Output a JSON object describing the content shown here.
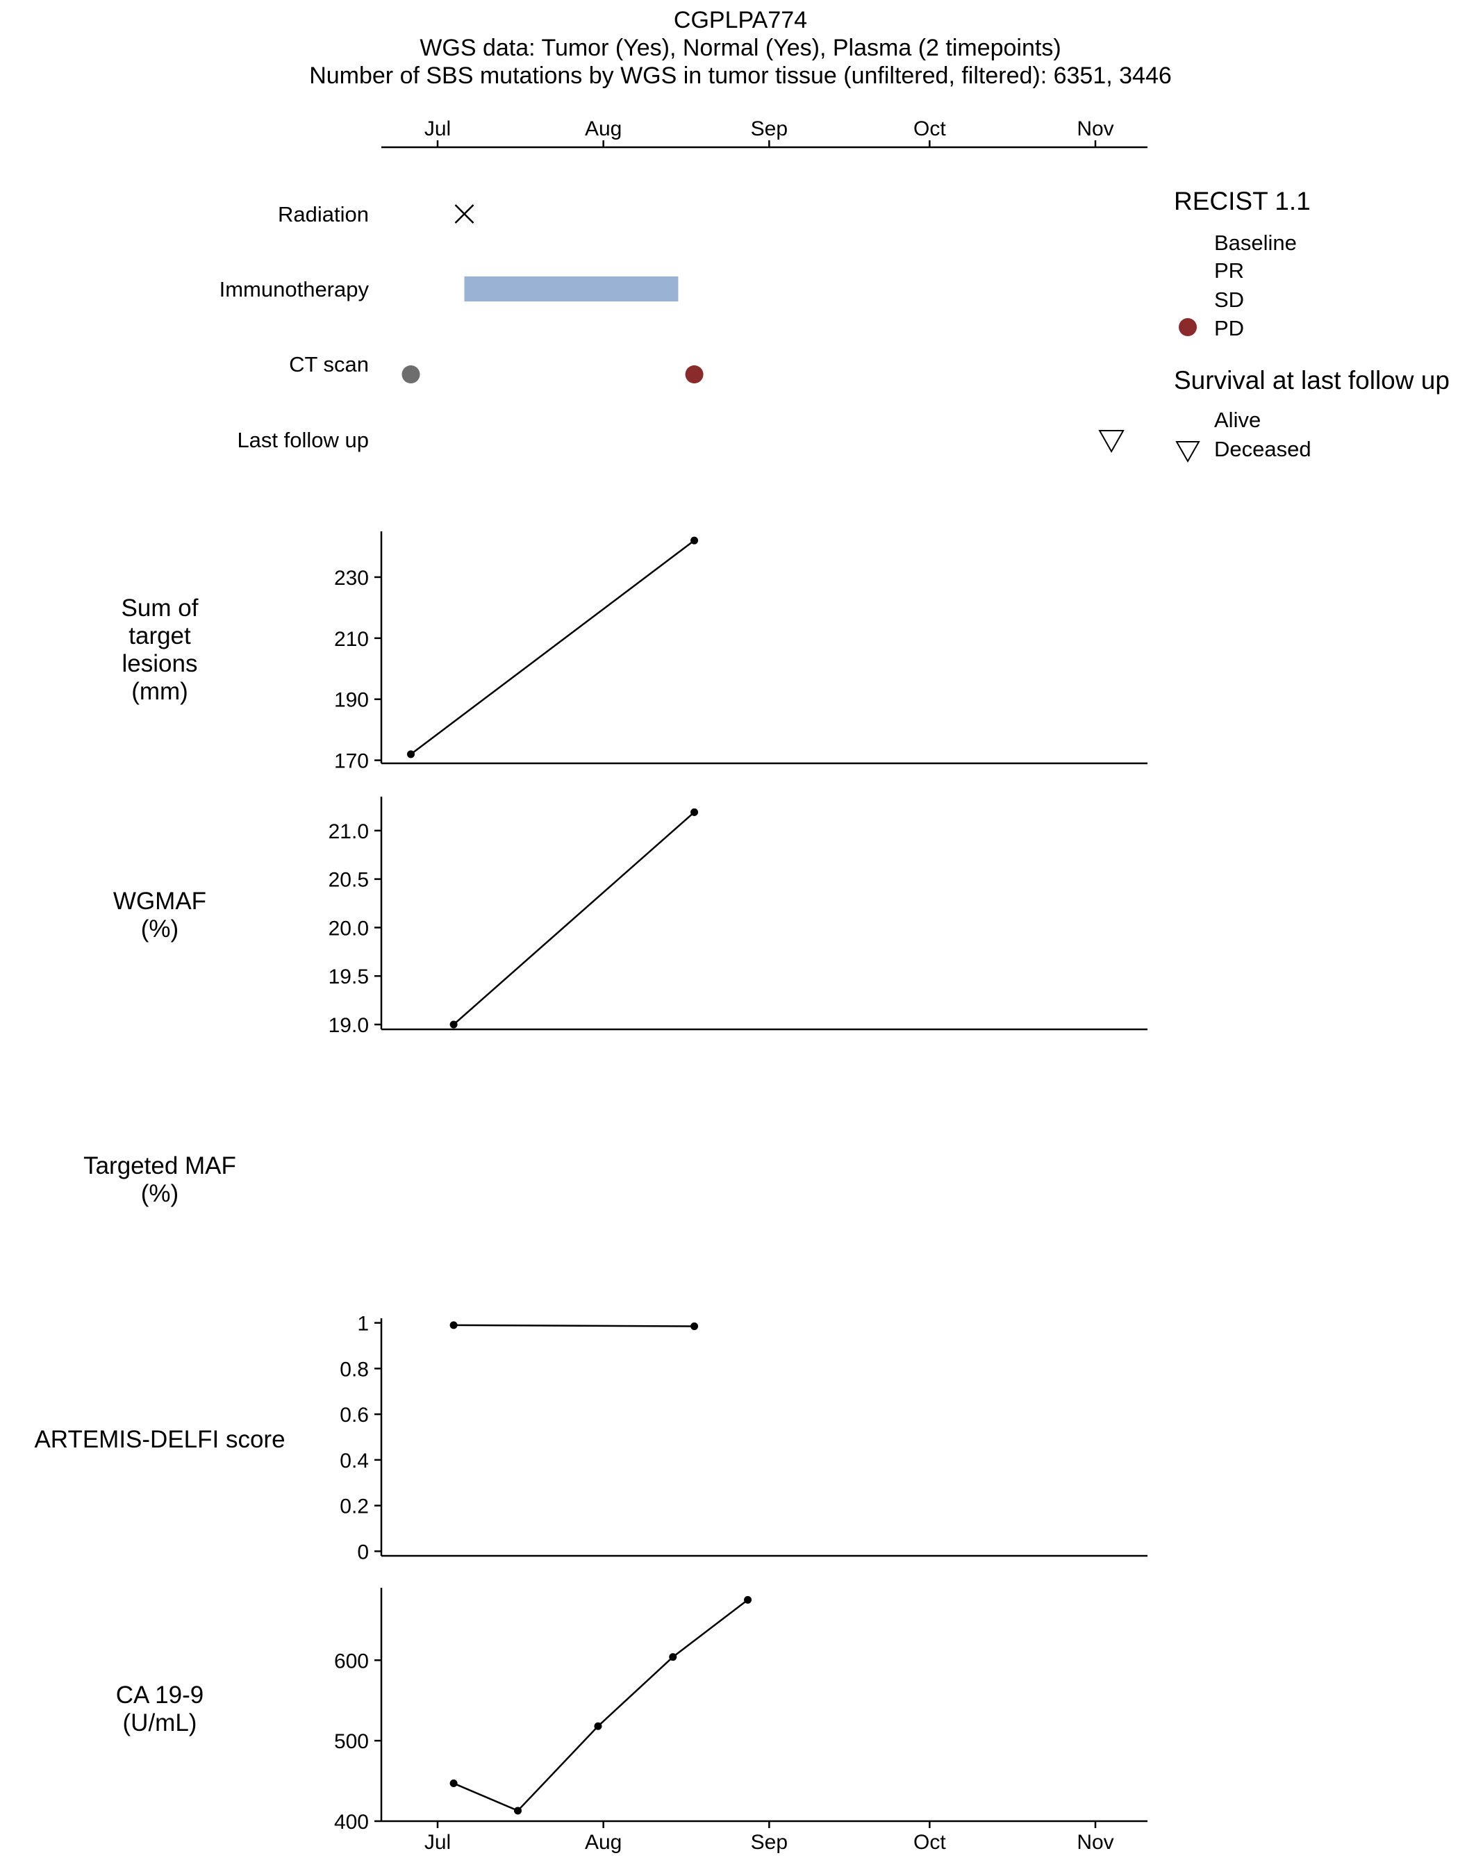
{
  "header": {
    "title": "CGPLPA774",
    "line2": "WGS data: Tumor (Yes), Normal (Yes), Plasma (2 timepoints)",
    "line3": "Number of SBS mutations by WGS in tumor tissue (unfiltered, filtered): 6351, 3446"
  },
  "chart_data": [
    {
      "type": "timeline",
      "x_ticks": [
        {
          "date": "2020-07-01",
          "label": "Jul"
        },
        {
          "date": "2020-08-01",
          "label": "Aug"
        },
        {
          "date": "2020-09-01",
          "label": "Sep"
        },
        {
          "date": "2020-10-01",
          "label": "Oct"
        },
        {
          "date": "2020-11-01",
          "label": "Nov"
        }
      ],
      "xlim": [
        "2020-06-20",
        "2020-11-10"
      ],
      "rows": [
        {
          "label": "Radiation",
          "events": [
            {
              "date": "2020-07-06",
              "marker": "x"
            }
          ]
        },
        {
          "label": "Immunotherapy",
          "events": [
            {
              "start": "2020-07-06",
              "end": "2020-08-15",
              "marker": "bar",
              "color": "#9ab3d5"
            }
          ]
        },
        {
          "label": "CT scan",
          "events": [
            {
              "date": "2020-06-26",
              "marker": "circle",
              "status": "Baseline",
              "color": "#6e6e6e"
            },
            {
              "date": "2020-08-18",
              "marker": "circle",
              "status": "PD",
              "color": "#8b2a2a"
            }
          ]
        },
        {
          "label": "Last follow up",
          "events": [
            {
              "date": "2020-11-04",
              "marker": "triangle-down",
              "status": "Deceased"
            }
          ]
        }
      ]
    },
    {
      "type": "line",
      "ylabel": "Sum of\ntarget\nlesions\n(mm)",
      "ylim": [
        169,
        245
      ],
      "yticks": [
        170,
        190,
        210,
        230
      ],
      "points": [
        {
          "x": "2020-06-26",
          "y": 172
        },
        {
          "x": "2020-08-18",
          "y": 242
        }
      ]
    },
    {
      "type": "line",
      "ylabel": "WGMAF\n(%)",
      "ylim": [
        18.95,
        21.35
      ],
      "yticks": [
        19.0,
        19.5,
        20.0,
        20.5,
        21.0
      ],
      "ytick_labels": [
        "19.0",
        "19.5",
        "20.0",
        "20.5",
        "21.0"
      ],
      "points": [
        {
          "x": "2020-07-04",
          "y": 19.0
        },
        {
          "x": "2020-08-18",
          "y": 21.19
        }
      ]
    },
    {
      "type": "line",
      "ylabel": "Targeted MAF\n(%)",
      "points": []
    },
    {
      "type": "line",
      "ylabel": "ARTEMIS-DELFI score",
      "ylim": [
        -0.02,
        1.02
      ],
      "yticks": [
        0,
        0.2,
        0.4,
        0.6,
        0.8,
        1
      ],
      "ytick_labels": [
        "0",
        "0.2",
        "0.4",
        "0.6",
        "0.8",
        "1"
      ],
      "points": [
        {
          "x": "2020-07-04",
          "y": 0.99
        },
        {
          "x": "2020-08-18",
          "y": 0.985
        }
      ]
    },
    {
      "type": "line",
      "ylabel": "CA 19-9\n(U/mL)",
      "ylim": [
        400,
        690
      ],
      "yticks": [
        400,
        500,
        600
      ],
      "points": [
        {
          "x": "2020-07-04",
          "y": 447
        },
        {
          "x": "2020-07-16",
          "y": 413
        },
        {
          "x": "2020-07-31",
          "y": 518
        },
        {
          "x": "2020-08-14",
          "y": 604
        },
        {
          "x": "2020-08-28",
          "y": 675
        }
      ]
    }
  ],
  "legend": {
    "recist_title": "RECIST 1.1",
    "recist_items": [
      {
        "label": "Baseline",
        "color": ""
      },
      {
        "label": "PR",
        "color": ""
      },
      {
        "label": "SD",
        "color": ""
      },
      {
        "label": "PD",
        "color": "#8b2a2a"
      }
    ],
    "survival_title": "Survival at last follow up",
    "survival_items": [
      {
        "label": "Alive",
        "symbol": ""
      },
      {
        "label": "Deceased",
        "symbol": "triangle-down"
      }
    ]
  }
}
